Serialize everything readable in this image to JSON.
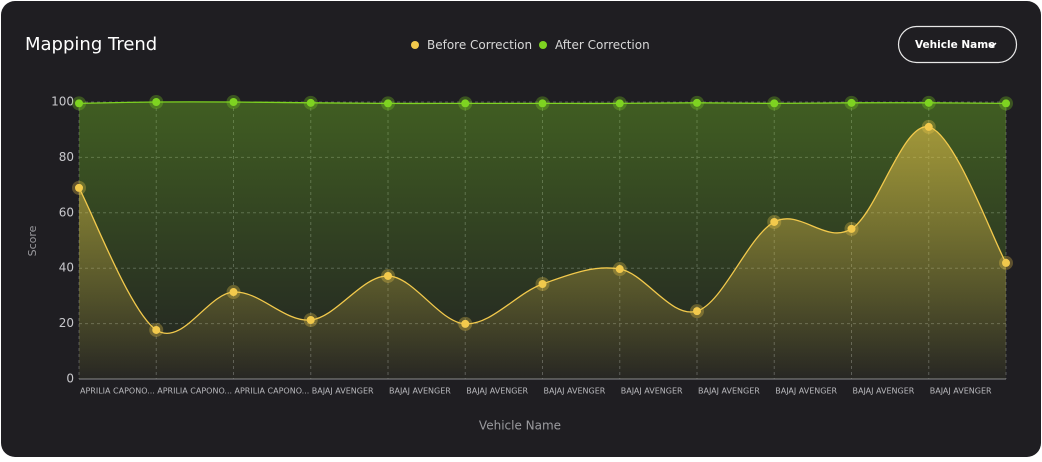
{
  "dropdown": "Vehicle Name",
  "chart_data": {
    "type": "line",
    "title": "Mapping Trend",
    "x_label": "Vehicle Name",
    "y_label": "Score",
    "categories": [
      "APRILIA CAPONO...",
      "APRILIA CAPONO...",
      "APRILIA CAPONO...",
      "BAJAJ AVENGER",
      "BAJAJ AVENGER",
      "BAJAJ AVENGER",
      "BAJAJ AVENGER",
      "BAJAJ AVENGER",
      "BAJAJ AVENGER",
      "BAJAJ AVENGER",
      "BAJAJ AVENGER",
      "BAJAJ AVENGER",
      null
    ],
    "series": [
      {
        "name": "Before Correction",
        "color": "#f2c94c",
        "values": [
          69,
          17.7,
          31.4,
          21.3,
          37.2,
          19.9,
          34.3,
          39.7,
          24.5,
          56.7,
          54.2,
          91,
          41.9
        ]
      },
      {
        "name": "After Correction",
        "color": "#7ed321",
        "values": [
          99.5,
          100,
          100,
          99.7,
          99.5,
          99.5,
          99.5,
          99.5,
          99.7,
          99.5,
          99.7,
          99.7,
          99.5
        ]
      }
    ],
    "ylim": [
      0,
      100
    ],
    "yticks": [
      0,
      20,
      40,
      60,
      80,
      100
    ],
    "grid": true
  }
}
